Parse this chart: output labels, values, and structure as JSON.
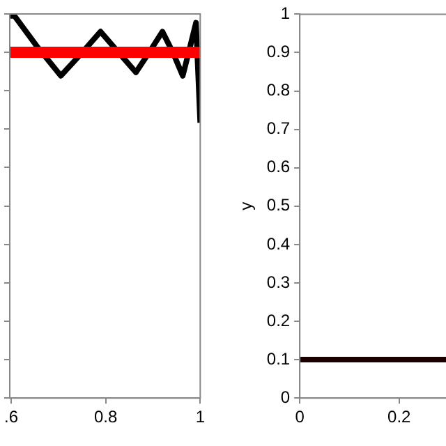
{
  "chart_data": [
    {
      "type": "line",
      "xlim": [
        0.597,
        1
      ],
      "xticks": [
        {
          "value": 0.6,
          "label": ".6"
        },
        0.8,
        1
      ],
      "ylim": [
        0,
        1
      ],
      "yticks": [
        0,
        0.1,
        0.2,
        0.3,
        0.4,
        0.5,
        0.6,
        0.7,
        0.8,
        0.9,
        1
      ],
      "tick_labels": "x",
      "grid": false,
      "legend": false,
      "series": [
        {
          "color": "#ff0000",
          "x": [
            0.597,
            1
          ],
          "values": [
            0.9,
            0.9
          ]
        },
        {
          "color": "#000000",
          "x": [
            0.597,
            0.607,
            0.653,
            0.705,
            0.747,
            0.789,
            0.827,
            0.864,
            0.892,
            0.92,
            0.942,
            0.963,
            0.977,
            0.991,
            1
          ],
          "values": [
            0.995,
            0.995,
            0.918,
            0.839,
            0.895,
            0.954,
            0.9,
            0.848,
            0.9,
            0.954,
            0.9,
            0.839,
            0.907,
            0.977,
            0.717
          ]
        }
      ]
    },
    {
      "type": "line",
      "xlim": [
        0,
        0.3
      ],
      "xticks": [
        0,
        0.2
      ],
      "ylim": [
        0,
        1
      ],
      "yticks": [
        0,
        0.1,
        0.2,
        0.3,
        0.4,
        0.5,
        0.6,
        0.7,
        0.8,
        0.9,
        1
      ],
      "ylabel": "y",
      "grid": false,
      "legend": false,
      "series": [
        {
          "color": "#1a0000",
          "x": [
            0,
            0.3
          ],
          "values": [
            0.1,
            0.1
          ]
        }
      ]
    }
  ]
}
